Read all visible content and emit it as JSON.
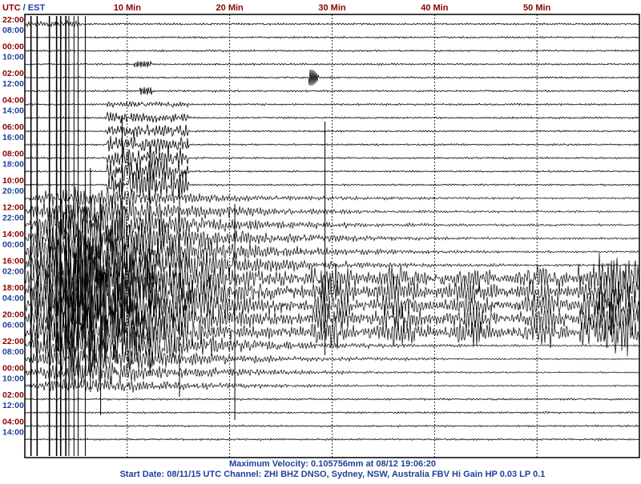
{
  "colors": {
    "utc": "#8b0000",
    "local": "#1f3f9a",
    "trace": "#000000",
    "grid": "#000000",
    "frame": "#000000",
    "background": "#ffffff"
  },
  "header": {
    "utc_label": "UTC",
    "separator": " / ",
    "local_label": "EST"
  },
  "footer": {
    "line1": "Maximum Velocity: 0.105756mm at 08/12 19:06:20",
    "line2": "Start Date: 08/11/15 UTC Channel: ZHI  BHZ  DNSO, Sydney, NSW, Australia  FBV Hi Gain HP 0.03  LP 0.1"
  },
  "chart_data": {
    "type": "line",
    "title": "",
    "xlabel": "",
    "ylabel": "",
    "x_unit": "Min",
    "x_range_minutes": [
      0,
      60
    ],
    "x_ticks": [
      {
        "value": 10,
        "label": "10 Min"
      },
      {
        "value": 20,
        "label": "20 Min"
      },
      {
        "value": 30,
        "label": "30 Min"
      },
      {
        "value": 40,
        "label": "40 Min"
      },
      {
        "value": 50,
        "label": "50 Min"
      }
    ],
    "grid": "vertical dashed every 10 min",
    "trace_count": 32,
    "time_labels": [
      {
        "utc": "22:00",
        "local": "08:00"
      },
      {
        "utc": "00:00",
        "local": "10:00"
      },
      {
        "utc": "02:00",
        "local": "12:00"
      },
      {
        "utc": "04:00",
        "local": "14:00"
      },
      {
        "utc": "06:00",
        "local": "16:00"
      },
      {
        "utc": "08:00",
        "local": "18:00"
      },
      {
        "utc": "10:00",
        "local": "20:00"
      },
      {
        "utc": "12:00",
        "local": "22:00"
      },
      {
        "utc": "14:00",
        "local": "00:00"
      },
      {
        "utc": "16:00",
        "local": "02:00"
      },
      {
        "utc": "18:00",
        "local": "04:00"
      },
      {
        "utc": "20:00",
        "local": "06:00"
      },
      {
        "utc": "22:00",
        "local": "08:00"
      },
      {
        "utc": "00:00",
        "local": "10:00"
      },
      {
        "utc": "02:00",
        "local": "12:00"
      },
      {
        "utc": "04:00",
        "local": "14:00"
      }
    ],
    "max_velocity_mm": 0.105756,
    "max_velocity_time": "08/12 19:06:20"
  }
}
